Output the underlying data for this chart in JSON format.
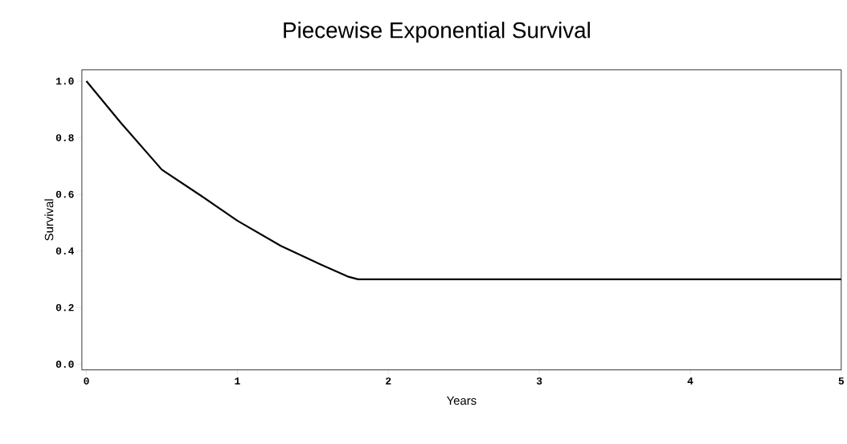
{
  "chart_data": {
    "type": "line",
    "title": "Piecewise Exponential Survival",
    "xlabel": "Years",
    "ylabel": "Survival",
    "x": [
      0,
      0.226,
      0.5,
      0.757,
      1.0,
      1.288,
      1.553,
      1.73,
      1.8,
      5
    ],
    "series": [
      {
        "color": "#000000",
        "values": [
          1.0,
          0.854,
          0.687,
          0.596,
          0.507,
          0.418,
          0.352,
          0.31,
          0.3,
          0.3
        ]
      }
    ],
    "xlim": [
      -0.03,
      5
    ],
    "ylim": [
      -0.02,
      1.04
    ],
    "xticks": [
      0,
      1,
      2,
      3,
      4,
      5
    ],
    "yticks": [
      {
        "value": 0,
        "label": "0.0"
      },
      {
        "value": 0.2,
        "label": "0.2"
      },
      {
        "value": 0.4,
        "label": "0.4"
      },
      {
        "value": 0.6,
        "label": "0.6"
      },
      {
        "value": 0.8,
        "label": "0.8"
      },
      {
        "value": 1,
        "label": "1.0"
      }
    ],
    "grid": false,
    "marker": "none",
    "line_style": "solid"
  }
}
